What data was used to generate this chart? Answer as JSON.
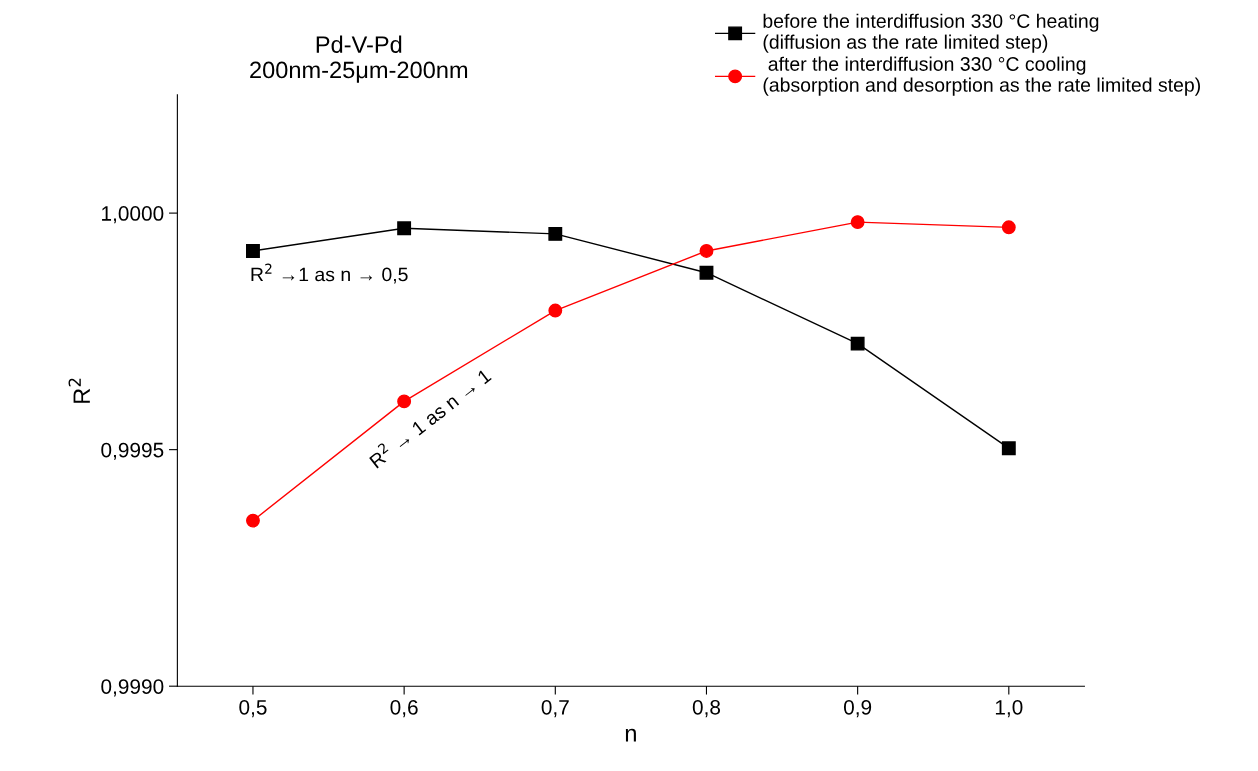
{
  "chart_data": {
    "type": "line",
    "title": "Pd-V-Pd\n200nm-25μm-200nm",
    "xlabel": "n",
    "ylabel": "R$^{2}$",
    "x": [
      0.5,
      0.6,
      0.7,
      0.8,
      0.9,
      1.0
    ],
    "series": [
      {
        "name": "before the interdiffusion 330 °C heating\n(diffusion as the rate limited step)",
        "color": "#000000",
        "marker": "square",
        "values": [
          0.99992,
          0.999968,
          0.999956,
          0.999874,
          0.999724,
          0.999503
        ]
      },
      {
        "name": " after the interdiffusion 330 °C cooling\n(absorption and desorption as the rate limited step)",
        "color": "#ff0000",
        "marker": "circle",
        "values": [
          0.99935,
          0.999602,
          0.999794,
          0.99992,
          0.999981,
          0.99997
        ]
      }
    ],
    "xlim": [
      0.45,
      1.05
    ],
    "ylim": [
      0.999,
      1.00025
    ],
    "xticks": [
      {
        "value": 0.5,
        "label": "0,5"
      },
      {
        "value": 0.6,
        "label": "0,6"
      },
      {
        "value": 0.7,
        "label": "0,7"
      },
      {
        "value": 0.8,
        "label": "0,8"
      },
      {
        "value": 0.9,
        "label": "0,9"
      },
      {
        "value": 1.0,
        "label": "1,0"
      }
    ],
    "yticks": [
      {
        "value": 0.999,
        "label": "0,9990"
      },
      {
        "value": 0.9995,
        "label": "0,9995"
      },
      {
        "value": 1.0,
        "label": "1,0000"
      }
    ],
    "annotations": [
      "R$^{2}$ →1 as n → 0,5",
      "R$^{2}$ → 1 as n → 1"
    ],
    "legend": "top right",
    "grid": false,
    "line_style": "solid"
  }
}
